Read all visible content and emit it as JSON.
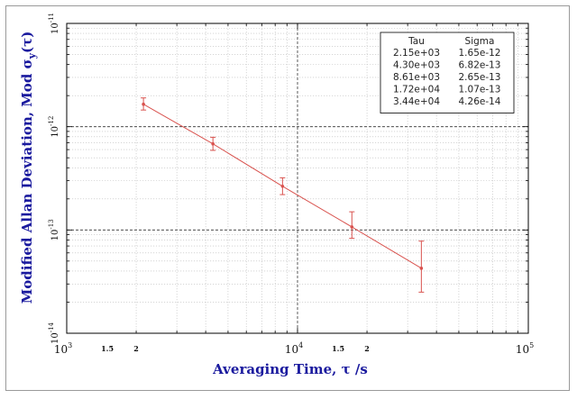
{
  "chart_data": {
    "type": "line",
    "title": "",
    "xlabel": "Averaging Time, τ /s",
    "ylabel": "Modified Allan Deviation, Mod σ_y(τ)",
    "xscale": "log",
    "yscale": "log",
    "xlim": [
      1000,
      100000
    ],
    "ylim": [
      1e-14,
      1e-11
    ],
    "grid": true,
    "x_major_tick_labels": [
      {
        "value": 1000,
        "base": "10",
        "exp": "3"
      },
      {
        "value": 10000,
        "base": "10",
        "exp": "4"
      },
      {
        "value": 100000,
        "base": "10",
        "exp": "5"
      }
    ],
    "x_minor_tick_labels": [
      {
        "value": 1500,
        "label": "1.5"
      },
      {
        "value": 2000,
        "label": "2"
      },
      {
        "value": 15000,
        "label": "1.5"
      },
      {
        "value": 20000,
        "label": "2"
      }
    ],
    "y_major_tick_labels": [
      {
        "value": 1e-14,
        "base": "10",
        "exp": "-14"
      },
      {
        "value": 1e-13,
        "base": "10",
        "exp": "-13"
      },
      {
        "value": 1e-12,
        "base": "10",
        "exp": "-12"
      },
      {
        "value": 1e-11,
        "base": "10",
        "exp": "-11"
      }
    ],
    "series": [
      {
        "color": "#d9534f",
        "x": [
          2150,
          4300,
          8610,
          17200,
          34400
        ],
        "y": [
          1.65e-12,
          6.82e-13,
          2.65e-13,
          1.07e-13,
          4.26e-14
        ],
        "err_low": [
          1.45e-12,
          5.9e-13,
          2.2e-13,
          8.3e-14,
          2.5e-14
        ],
        "err_high": [
          1.9e-12,
          7.9e-13,
          3.2e-13,
          1.5e-13,
          7.8e-14
        ]
      }
    ],
    "legend_table": {
      "position": "top-right",
      "headers": [
        "Tau",
        "Sigma"
      ],
      "rows": [
        [
          "2.15e+03",
          "1.65e-12"
        ],
        [
          "4.30e+03",
          "6.82e-13"
        ],
        [
          "8.61e+03",
          "2.65e-13"
        ],
        [
          "1.72e+04",
          "1.07e-13"
        ],
        [
          "3.44e+04",
          "4.26e-14"
        ]
      ]
    }
  }
}
